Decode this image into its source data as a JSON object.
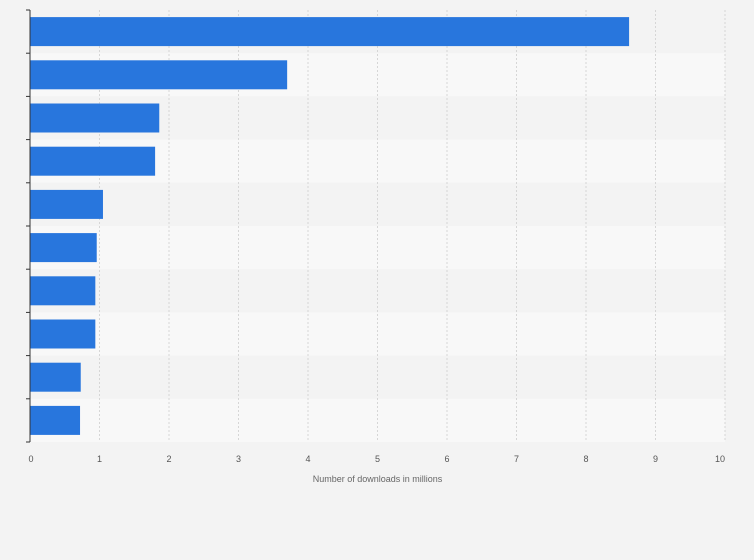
{
  "chart_data": {
    "type": "bar",
    "orientation": "horizontal",
    "categories": [
      "",
      "",
      "",
      "",
      "",
      "",
      "",
      "",
      "",
      ""
    ],
    "values": [
      8.62,
      3.7,
      1.86,
      1.8,
      1.05,
      0.96,
      0.94,
      0.94,
      0.73,
      0.72
    ],
    "title": "",
    "xlabel": "Number of downloads in millions",
    "ylabel": "",
    "xlim": [
      0,
      10
    ],
    "xticks": [
      "0",
      "1",
      "2",
      "3",
      "4",
      "5",
      "6",
      "7",
      "8",
      "9",
      "10"
    ],
    "grid": true,
    "legend": "none",
    "bar_color": "#2876dd",
    "band_colors": [
      "#f3f3f3",
      "#f8f8f8"
    ],
    "background_color": "#f3f3f3"
  }
}
